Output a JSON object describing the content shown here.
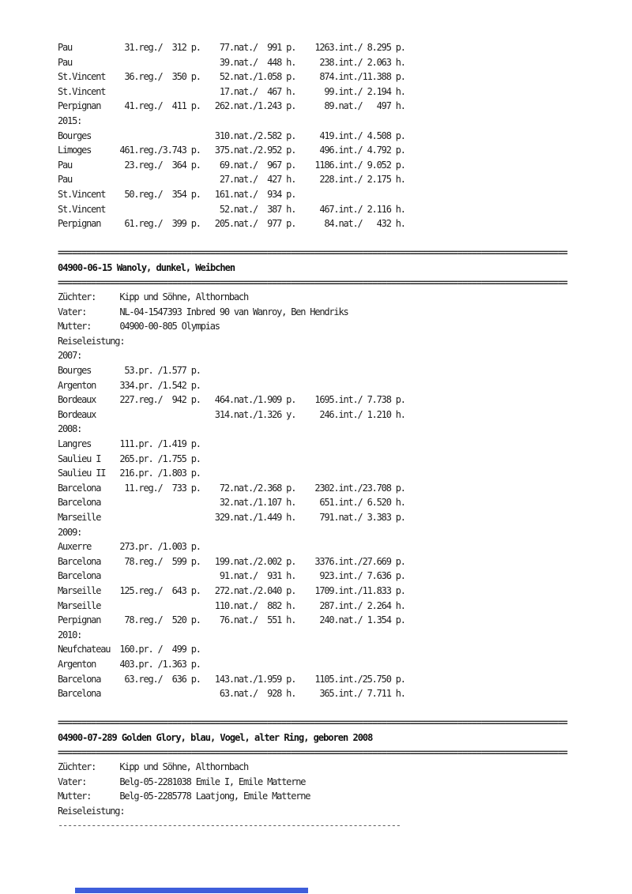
{
  "page": {
    "background": "#ffffff",
    "text_color": "#1d1d1d",
    "bottom_bar_color": "#3e5edb"
  },
  "document": {
    "lines": [
      {
        "type": "row",
        "place": "Pau",
        "reg": [
          "31",
          "312",
          "p"
        ],
        "nat": [
          "77",
          "991",
          "p"
        ],
        "int": [
          "1263",
          "int",
          "8.295",
          "p"
        ]
      },
      {
        "type": "row",
        "place": "Pau",
        "nat": [
          "39",
          "448",
          "h"
        ],
        "int": [
          "238",
          "int",
          "2.063",
          "h"
        ]
      },
      {
        "type": "row",
        "place": "St.Vincent",
        "reg": [
          "36",
          "350",
          "p"
        ],
        "nat": [
          "52",
          "1.058",
          "p"
        ],
        "int": [
          "874",
          "int",
          "11.388",
          "p"
        ]
      },
      {
        "type": "row",
        "place": "St.Vincent",
        "nat": [
          "17",
          "467",
          "h"
        ],
        "int": [
          "99",
          "int",
          "2.194",
          "h"
        ]
      },
      {
        "type": "row",
        "place": "Perpignan",
        "reg": [
          "41",
          "411",
          "p"
        ],
        "nat": [
          "262",
          "1.243",
          "p"
        ],
        "int": [
          "89",
          "nat",
          "497",
          "h"
        ]
      },
      {
        "type": "year",
        "text": "2015:"
      },
      {
        "type": "row",
        "place": "Bourges",
        "nat": [
          "310",
          "2.582",
          "p"
        ],
        "int": [
          "419",
          "int",
          "4.508",
          "p"
        ]
      },
      {
        "type": "row",
        "place": "Limoges",
        "reg": [
          "461",
          "3.743",
          "p"
        ],
        "nat": [
          "375",
          "2.952",
          "p"
        ],
        "int": [
          "496",
          "int",
          "4.792",
          "p"
        ]
      },
      {
        "type": "row",
        "place": "Pau",
        "reg": [
          "23",
          "364",
          "p"
        ],
        "nat": [
          "69",
          "967",
          "p"
        ],
        "int": [
          "1186",
          "int",
          "9.052",
          "p"
        ]
      },
      {
        "type": "row",
        "place": "Pau",
        "nat": [
          "27",
          "427",
          "h"
        ],
        "int": [
          "228",
          "int",
          "2.175",
          "h"
        ]
      },
      {
        "type": "row",
        "place": "St.Vincent",
        "reg": [
          "50",
          "354",
          "p"
        ],
        "nat": [
          "161",
          "934",
          "p"
        ]
      },
      {
        "type": "row",
        "place": "St.Vincent",
        "nat": [
          "52",
          "387",
          "h"
        ],
        "int": [
          "467",
          "int",
          "2.116",
          "h"
        ]
      },
      {
        "type": "row",
        "place": "Perpignan",
        "reg": [
          "61",
          "399",
          "p"
        ],
        "nat": [
          "205",
          "977",
          "p"
        ],
        "int": [
          "84",
          "nat",
          "432",
          "h"
        ]
      },
      {
        "type": "blank"
      },
      {
        "type": "sep2"
      },
      {
        "type": "heading",
        "text": "04900-06-15 Wanoly, dunkel, Weibchen"
      },
      {
        "type": "sep2"
      },
      {
        "type": "label",
        "label": "Züchter:",
        "value": "Kipp und Söhne, Althornbach"
      },
      {
        "type": "label",
        "label": "Vater:",
        "value": "NL-04-1547393 Inbred 90 van Wanroy, Ben Hendriks"
      },
      {
        "type": "label",
        "label": "Mutter:",
        "value": "04900-00-805 Olympias"
      },
      {
        "type": "plain",
        "text": "Reiseleistung:"
      },
      {
        "type": "year",
        "text": "2007:"
      },
      {
        "type": "row",
        "place": "Bourges",
        "pr": [
          "53",
          "1.577"
        ]
      },
      {
        "type": "row",
        "place": "Argenton",
        "pr": [
          "334",
          "1.542"
        ]
      },
      {
        "type": "row",
        "place": "Bordeaux",
        "reg": [
          "227",
          "942",
          "p"
        ],
        "nat": [
          "464",
          "1.909",
          "p"
        ],
        "int": [
          "1695",
          "int",
          "7.738",
          "p"
        ]
      },
      {
        "type": "row",
        "place": "Bordeaux",
        "nat": [
          "314",
          "1.326",
          "y"
        ],
        "int": [
          "246",
          "int",
          "1.210",
          "h"
        ]
      },
      {
        "type": "year",
        "text": "2008:"
      },
      {
        "type": "row",
        "place": "Langres",
        "pr": [
          "111",
          "1.419"
        ]
      },
      {
        "type": "row",
        "place": "Saulieu I",
        "pr": [
          "265",
          "1.755"
        ]
      },
      {
        "type": "row",
        "place": "Saulieu II",
        "pr": [
          "216",
          "1.803"
        ]
      },
      {
        "type": "row",
        "place": "Barcelona",
        "reg": [
          "11",
          "733",
          "p"
        ],
        "nat": [
          "72",
          "2.368",
          "p"
        ],
        "int": [
          "2302",
          "int",
          "23.708",
          "p"
        ]
      },
      {
        "type": "row",
        "place": "Barcelona",
        "nat": [
          "32",
          "1.107",
          "h"
        ],
        "int": [
          "651",
          "int",
          "6.520",
          "h"
        ]
      },
      {
        "type": "row",
        "place": "Marseille",
        "nat": [
          "329",
          "1.449",
          "h"
        ],
        "int": [
          "791",
          "nat",
          "3.383",
          "p"
        ]
      },
      {
        "type": "year",
        "text": "2009:"
      },
      {
        "type": "row",
        "place": "Auxerre",
        "pr": [
          "273",
          "1.003"
        ]
      },
      {
        "type": "row",
        "place": "Barcelona",
        "reg": [
          "78",
          "599",
          "p"
        ],
        "nat": [
          "199",
          "2.002",
          "p"
        ],
        "int": [
          "3376",
          "int",
          "27.669",
          "p"
        ]
      },
      {
        "type": "row",
        "place": "Barcelona",
        "nat": [
          "91",
          "931",
          "h"
        ],
        "int": [
          "923",
          "int",
          "7.636",
          "p"
        ]
      },
      {
        "type": "row",
        "place": "Marseille",
        "reg": [
          "125",
          "643",
          "p"
        ],
        "nat": [
          "272",
          "2.040",
          "p"
        ],
        "int": [
          "1709",
          "int",
          "11.833",
          "p"
        ]
      },
      {
        "type": "row",
        "place": "Marseille",
        "nat": [
          "110",
          "882",
          "h"
        ],
        "int": [
          "287",
          "int",
          "2.264",
          "h"
        ]
      },
      {
        "type": "row",
        "place": "Perpignan",
        "reg": [
          "78",
          "520",
          "p"
        ],
        "nat": [
          "76",
          "551",
          "h"
        ],
        "int": [
          "240",
          "nat",
          "1.354",
          "p"
        ]
      },
      {
        "type": "year",
        "text": "2010:"
      },
      {
        "type": "row",
        "place": "Neufchateau",
        "pr": [
          "160",
          "499"
        ]
      },
      {
        "type": "row",
        "place": "Argenton",
        "pr": [
          "403",
          "1.363"
        ]
      },
      {
        "type": "row",
        "place": "Barcelona",
        "reg": [
          "63",
          "636",
          "p"
        ],
        "nat": [
          "143",
          "1.959",
          "p"
        ],
        "int": [
          "1105",
          "int",
          "25.750",
          "p"
        ]
      },
      {
        "type": "row",
        "place": "Barcelona",
        "nat": [
          "63",
          "928",
          "h"
        ],
        "int": [
          "365",
          "int",
          "7.711",
          "h"
        ]
      },
      {
        "type": "blank"
      },
      {
        "type": "sep2"
      },
      {
        "type": "heading",
        "text": "04900-07-289 Golden Glory, blau, Vogel, alter Ring, geboren 2008"
      },
      {
        "type": "sep2"
      },
      {
        "type": "label",
        "label": "Züchter:",
        "value": "Kipp und Söhne, Althornbach"
      },
      {
        "type": "label",
        "label": "Vater:",
        "value": "Belg-05-2281038 Emile I, Emile Matterne"
      },
      {
        "type": "label",
        "label": "Mutter:",
        "value": "Belg-05-2285778 Laatjong, Emile Matterne"
      },
      {
        "type": "plain",
        "text": "Reiseleistung:"
      },
      {
        "type": "sep1"
      }
    ]
  }
}
